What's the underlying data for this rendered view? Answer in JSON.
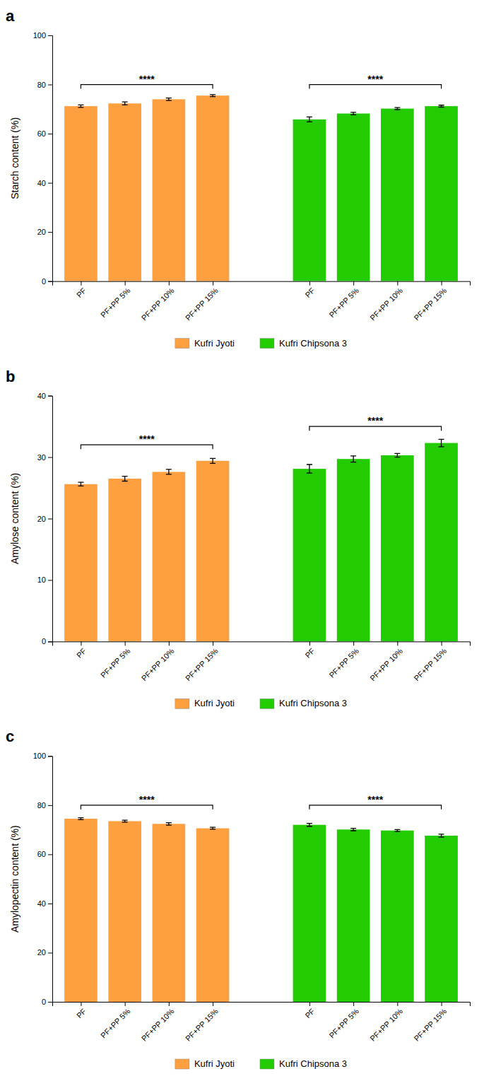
{
  "chart_data": [
    {
      "type": "bar",
      "title": "a",
      "ylabel": "Starch content (%)",
      "categories": [
        "PF",
        "PF+PP 5%",
        "PF+PP 10%",
        "PF+PP 15%"
      ],
      "ylim": [
        0,
        100
      ],
      "yticks": [
        0,
        20,
        40,
        60,
        80,
        100
      ],
      "grid": false,
      "legend": "bottom",
      "series": [
        {
          "name": "Kufri Jyoti",
          "color": "#FFA040",
          "values": [
            71.2,
            72.3,
            74.0,
            75.5
          ],
          "errors": [
            0.5,
            0.6,
            0.5,
            0.4
          ],
          "bracket": {
            "y": 80,
            "label": "****"
          }
        },
        {
          "name": "Kufri Chipsona 3",
          "color": "#22CC00",
          "values": [
            65.8,
            68.2,
            70.2,
            71.2
          ],
          "errors": [
            1.0,
            0.5,
            0.4,
            0.4
          ],
          "bracket": {
            "y": 80,
            "label": "****"
          }
        }
      ]
    },
    {
      "type": "bar",
      "title": "b",
      "ylabel": "Amylose content (%)",
      "categories": [
        "PF",
        "PF+PP 5%",
        "PF+PP 10%",
        "PF+PP 15%"
      ],
      "ylim": [
        0,
        40
      ],
      "yticks": [
        0,
        10,
        20,
        30,
        40
      ],
      "grid": false,
      "legend": "bottom",
      "series": [
        {
          "name": "Kufri Jyoti",
          "color": "#FFA040",
          "values": [
            25.6,
            26.5,
            27.6,
            29.4
          ],
          "errors": [
            0.3,
            0.4,
            0.4,
            0.4
          ],
          "bracket": {
            "y": 32,
            "label": "****"
          }
        },
        {
          "name": "Kufri Chipsona 3",
          "color": "#22CC00",
          "values": [
            28.1,
            29.7,
            30.3,
            32.3
          ],
          "errors": [
            0.7,
            0.5,
            0.3,
            0.6
          ],
          "bracket": {
            "y": 35,
            "label": "****"
          }
        }
      ]
    },
    {
      "type": "bar",
      "title": "c",
      "ylabel": "Amylopectin content (%)",
      "categories": [
        "PF",
        "PF+PP 5%",
        "PF+PP 10%",
        "PF+PP 15%"
      ],
      "ylim": [
        0,
        100
      ],
      "yticks": [
        0,
        20,
        40,
        60,
        80,
        100
      ],
      "grid": false,
      "legend": "bottom",
      "series": [
        {
          "name": "Kufri Jyoti",
          "color": "#FFA040",
          "values": [
            74.5,
            73.5,
            72.4,
            70.6
          ],
          "errors": [
            0.4,
            0.4,
            0.5,
            0.4
          ],
          "bracket": {
            "y": 80,
            "label": "****"
          }
        },
        {
          "name": "Kufri Chipsona 3",
          "color": "#22CC00",
          "values": [
            72.0,
            70.1,
            69.7,
            67.6
          ],
          "errors": [
            0.6,
            0.5,
            0.4,
            0.6
          ],
          "bracket": {
            "y": 80,
            "label": "****"
          }
        }
      ]
    }
  ]
}
